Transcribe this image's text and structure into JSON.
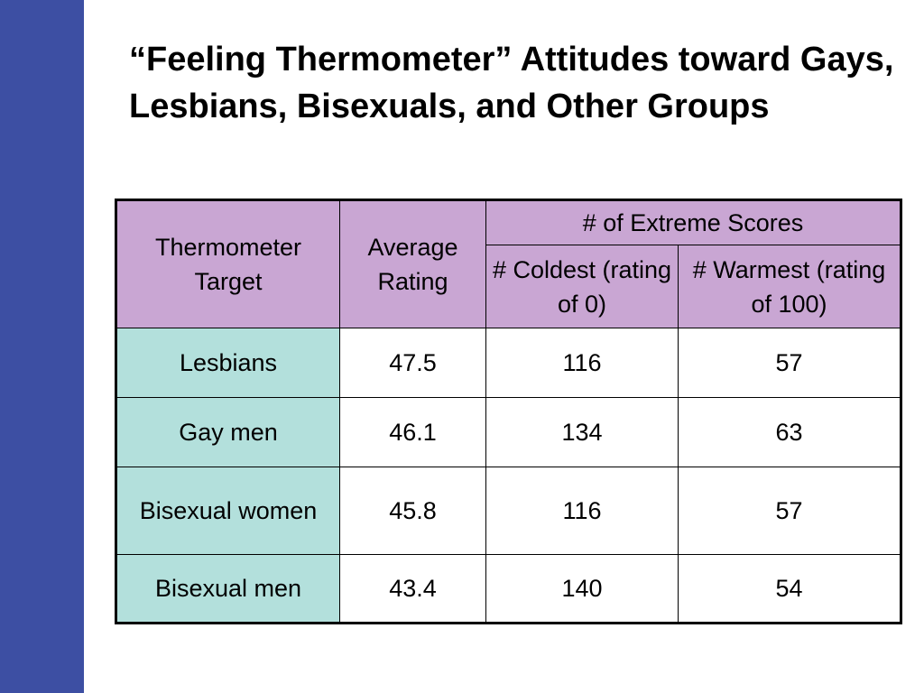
{
  "slide": {
    "title": "“Feeling Thermometer” Attitudes toward Gays, Lesbians, Bisexuals, and Other Groups"
  },
  "table": {
    "header": {
      "target": "Thermometer Target",
      "average": "Average Rating",
      "extreme": "# of Extreme Scores",
      "coldest": "# Coldest (rating of 0)",
      "warmest": "# Warmest (rating of 100)"
    },
    "rows": [
      {
        "target": "Lesbians",
        "average": "47.5",
        "coldest": "116",
        "warmest": "57"
      },
      {
        "target": "Gay men",
        "average": "46.1",
        "coldest": "134",
        "warmest": "63"
      },
      {
        "target": "Bisexual women",
        "average": "45.8",
        "coldest": "116",
        "warmest": "57"
      },
      {
        "target": "Bisexual men",
        "average": "43.4",
        "coldest": "140",
        "warmest": "54"
      }
    ]
  },
  "colors": {
    "left_bar": "#3d4fa3",
    "header_fill": "#c9a6d3",
    "target_fill": "#b3e0dc"
  }
}
